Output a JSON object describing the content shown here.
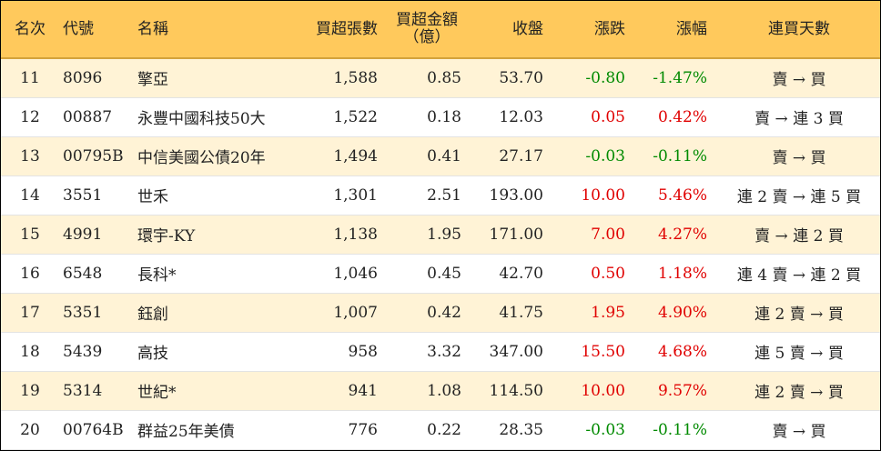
{
  "columns": {
    "rank": "名次",
    "code": "代號",
    "name": "名稱",
    "net_buy_lots": "買超張數",
    "net_buy_amount_line1": "買超金額",
    "net_buy_amount_line2": "（億）",
    "close": "收盤",
    "change": "漲跌",
    "change_pct": "漲幅",
    "streak": "連買天數"
  },
  "rows": [
    {
      "rank": "11",
      "code": "8096",
      "name": "擎亞",
      "lots": "1,588",
      "amount": "0.85",
      "close": "53.70",
      "change": "-0.80",
      "pct": "-1.47%",
      "direction": "down",
      "streak": "賣 → 買"
    },
    {
      "rank": "12",
      "code": "00887",
      "name": "永豐中國科技50大",
      "lots": "1,522",
      "amount": "0.18",
      "close": "12.03",
      "change": "0.05",
      "pct": "0.42%",
      "direction": "up",
      "streak": "賣 → 連 3 買"
    },
    {
      "rank": "13",
      "code": "00795B",
      "name": "中信美國公債20年",
      "lots": "1,494",
      "amount": "0.41",
      "close": "27.17",
      "change": "-0.03",
      "pct": "-0.11%",
      "direction": "down",
      "streak": "賣 → 買"
    },
    {
      "rank": "14",
      "code": "3551",
      "name": "世禾",
      "lots": "1,301",
      "amount": "2.51",
      "close": "193.00",
      "change": "10.00",
      "pct": "5.46%",
      "direction": "up",
      "streak": "連 2 賣 → 連 5 買"
    },
    {
      "rank": "15",
      "code": "4991",
      "name": "環宇-KY",
      "lots": "1,138",
      "amount": "1.95",
      "close": "171.00",
      "change": "7.00",
      "pct": "4.27%",
      "direction": "up",
      "streak": "賣 → 連 2 買"
    },
    {
      "rank": "16",
      "code": "6548",
      "name": "長科*",
      "lots": "1,046",
      "amount": "0.45",
      "close": "42.70",
      "change": "0.50",
      "pct": "1.18%",
      "direction": "up",
      "streak": "連 4 賣 → 連 2 買"
    },
    {
      "rank": "17",
      "code": "5351",
      "name": "鈺創",
      "lots": "1,007",
      "amount": "0.42",
      "close": "41.75",
      "change": "1.95",
      "pct": "4.90%",
      "direction": "up",
      "streak": "連 2 賣 → 買"
    },
    {
      "rank": "18",
      "code": "5439",
      "name": "高技",
      "lots": "958",
      "amount": "3.32",
      "close": "347.00",
      "change": "15.50",
      "pct": "4.68%",
      "direction": "up",
      "streak": "連 5 賣 → 買"
    },
    {
      "rank": "19",
      "code": "5314",
      "name": "世紀*",
      "lots": "941",
      "amount": "1.08",
      "close": "114.50",
      "change": "10.00",
      "pct": "9.57%",
      "direction": "up",
      "streak": "連 2 賣 → 買"
    },
    {
      "rank": "20",
      "code": "00764B",
      "name": "群益25年美債",
      "lots": "776",
      "amount": "0.22",
      "close": "28.35",
      "change": "-0.03",
      "pct": "-0.11%",
      "direction": "down",
      "streak": "賣 → 買"
    }
  ],
  "colors": {
    "header_bg": "#ffc95c",
    "row_shade": "#fff3d6",
    "up": "#e00000",
    "down": "#008a00"
  }
}
